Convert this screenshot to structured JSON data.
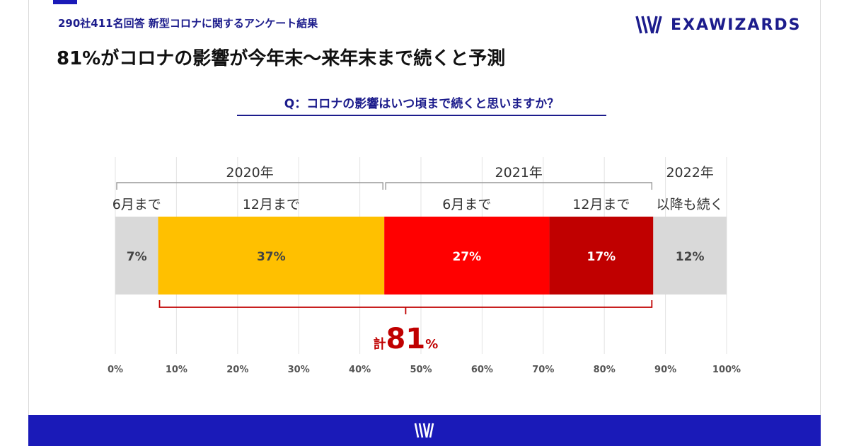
{
  "header": {
    "subtitle": "290社411名回答 新型コロナに関するアンケート結果",
    "title": "81%がコロナの影響が今年末〜来年末まで続くと予測",
    "logo_text": "EXAWIZARDS"
  },
  "question": "Q：コロナの影響はいつ頃まで続くと思いますか？",
  "chart_data": {
    "type": "bar",
    "orientation": "horizontal",
    "stacked": true,
    "xlim": [
      0,
      100
    ],
    "xticks": [
      "0%",
      "10%",
      "20%",
      "30%",
      "40%",
      "50%",
      "60%",
      "70%",
      "80%",
      "90%",
      "100%"
    ],
    "grid": true,
    "year_groups": [
      {
        "label": "2020年",
        "segments": [
          0,
          1
        ]
      },
      {
        "label": "2021年",
        "segments": [
          2,
          3
        ]
      },
      {
        "label": "2022年",
        "segments": [
          4
        ]
      }
    ],
    "segments": [
      {
        "category": "6月まで",
        "value": 7,
        "label": "7%",
        "color": "#d9d9d9"
      },
      {
        "category": "12月まで",
        "value": 37,
        "label": "37%",
        "color": "#ffc000"
      },
      {
        "category": "6月まで",
        "value": 27,
        "label": "27%",
        "color": "#ff0000"
      },
      {
        "category": "12月まで",
        "value": 17,
        "label": "17%",
        "color": "#c00000"
      },
      {
        "category": "以降も続く",
        "value": 12,
        "label": "12%",
        "color": "#d9d9d9"
      }
    ],
    "total_annotation": {
      "prefix": "計",
      "value": "81",
      "suffix": "%",
      "from_segment": 1,
      "to_segment": 3,
      "color": "#c00000"
    }
  },
  "colors": {
    "brand": "#1a1ab8",
    "navy": "#1c1c8c",
    "accent_red": "#c00000"
  }
}
